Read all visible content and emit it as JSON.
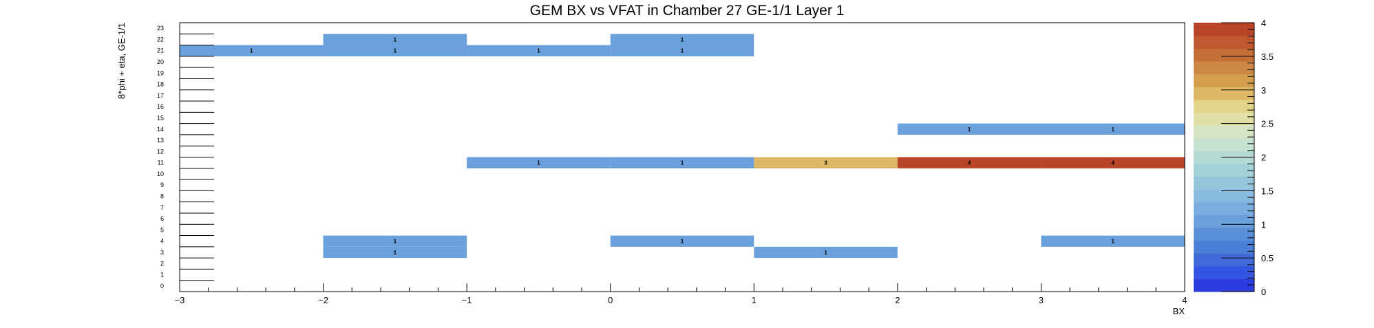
{
  "chart_data": {
    "type": "heatmap",
    "title": "GEM BX vs VFAT in Chamber 27 GE-1/1 Layer 1",
    "xlabel": "BX",
    "ylabel": "8*phi + eta, GE-1/1",
    "xlim": [
      -3,
      4
    ],
    "ylim": [
      0,
      24
    ],
    "x_ticks": [
      -3,
      -2,
      -1,
      0,
      1,
      2,
      3,
      4
    ],
    "x_tick_labels": [
      "−3",
      "−2",
      "−1",
      "0",
      "1",
      "2",
      "3",
      "4"
    ],
    "y_ticks": [
      0,
      1,
      2,
      3,
      4,
      5,
      6,
      7,
      8,
      9,
      10,
      11,
      12,
      13,
      14,
      15,
      16,
      17,
      18,
      19,
      20,
      21,
      22,
      23
    ],
    "z_range": [
      0,
      4
    ],
    "z_ticks": [
      0,
      0.5,
      1,
      1.5,
      2,
      2.5,
      3,
      3.5,
      4
    ],
    "z_tick_labels": [
      "0",
      "0.5",
      "1",
      "1.5",
      "2",
      "2.5",
      "3",
      "3.5",
      "4"
    ],
    "cells": [
      {
        "bx": -3,
        "y": 21,
        "value": 1
      },
      {
        "bx": -2,
        "y": 21,
        "value": 1
      },
      {
        "bx": -1,
        "y": 21,
        "value": 1
      },
      {
        "bx": 0,
        "y": 21,
        "value": 1
      },
      {
        "bx": -2,
        "y": 22,
        "value": 1
      },
      {
        "bx": 0,
        "y": 22,
        "value": 1
      },
      {
        "bx": 2,
        "y": 14,
        "value": 1
      },
      {
        "bx": 3,
        "y": 14,
        "value": 1
      },
      {
        "bx": -1,
        "y": 11,
        "value": 1
      },
      {
        "bx": 0,
        "y": 11,
        "value": 1
      },
      {
        "bx": 1,
        "y": 11,
        "value": 3
      },
      {
        "bx": 2,
        "y": 11,
        "value": 4
      },
      {
        "bx": 3,
        "y": 11,
        "value": 4
      },
      {
        "bx": -2,
        "y": 4,
        "value": 1
      },
      {
        "bx": 0,
        "y": 4,
        "value": 1
      },
      {
        "bx": 3,
        "y": 4,
        "value": 1
      },
      {
        "bx": -2,
        "y": 3,
        "value": 1
      },
      {
        "bx": 1,
        "y": 3,
        "value": 1
      }
    ],
    "palette": [
      "#2b3de0",
      "#3455e0",
      "#3f6ad8",
      "#4c7fd6",
      "#5a90d8",
      "#6aa0dc",
      "#7aaede",
      "#89bbe0",
      "#96c6dc",
      "#a4d0d8",
      "#b4dad4",
      "#c6e2d0",
      "#d6e6c4",
      "#e0e0a6",
      "#e4d48a",
      "#deb864",
      "#d4a050",
      "#cc8844",
      "#c46e38",
      "#c05830",
      "#ba4428"
    ],
    "grid": false,
    "colorbar": "right"
  }
}
